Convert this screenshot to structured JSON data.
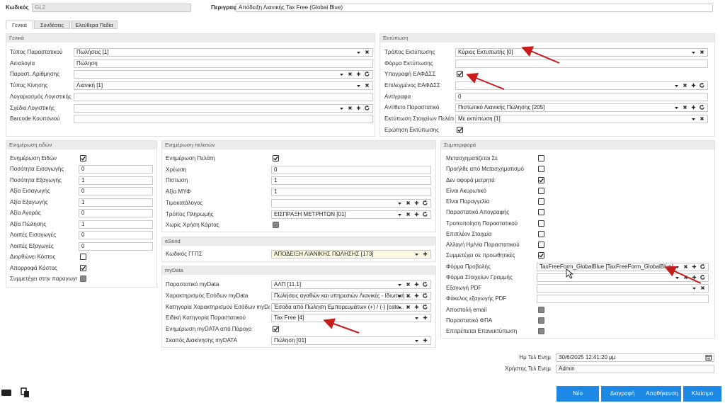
{
  "header": {
    "code_label": "Κωδικός",
    "code_value": "GL2",
    "desc_label": "Περιγραφή",
    "desc_value": "Απόδειξη Λιανικής Tax Free (Global Blue)"
  },
  "tabs": [
    "Γενικά",
    "Συνδέσεις",
    "Ελεύθερα Πεδία"
  ],
  "sections": [
    {
      "title": "Γενικά",
      "fields": [
        {
          "label": "Τύπος Παραστατικού",
          "value": "Πωλήσεις [1]",
          "control": "select-x"
        },
        {
          "label": "Αιτιολογία",
          "value": "Πώληση",
          "control": "text"
        },
        {
          "label": "Παραστ. Αρίθμησης",
          "control": "select-full"
        },
        {
          "label": "Τύπος Κίνησης",
          "value": "Λιανική [1]",
          "control": "select-x"
        },
        {
          "label": "Λογαριασμός Λογιστικής",
          "control": "text"
        },
        {
          "label": "Σχέδιο Λογιστικής",
          "control": "select-full"
        },
        {
          "label": "Barcode Κουπονιού",
          "control": "text"
        }
      ]
    },
    {
      "title": "Εκτύπωση",
      "fields": [
        {
          "label": "Τρόπος Εκτύπωσης",
          "value": "Κύριος Εκτυπωτής [0]",
          "control": "select-x"
        },
        {
          "label": "Φόρμα Εκτύπωσης",
          "control": "text"
        },
        {
          "label": "Υπογραφή ΕΑΦΔΣΣ",
          "control": "check",
          "checked": true
        },
        {
          "label": "Επιλεγμένος ΕΑΦΔΣΣ",
          "control": "select-full"
        },
        {
          "label": "Αντίγραφα",
          "value": "0",
          "control": "text"
        },
        {
          "label": "Αντίθετο Παραστατικό",
          "value": "Πιστωτικό Λιανικής Πώλησης [205]",
          "control": "select-full"
        },
        {
          "label": "Εκτύπωση Στοιχείων Πελάτη",
          "value": "Με εκτύπωση [1]",
          "control": "select-x"
        },
        {
          "label": "Ερώτηση Εκτύπωσης",
          "control": "check",
          "checked": true
        }
      ]
    },
    {
      "title": "Ενημέρωση ειδών",
      "fields": [
        {
          "label": "Ενημέρωση Ειδών",
          "control": "check",
          "checked": true
        },
        {
          "label": "Ποσότητα Εισαγωγής",
          "value": "0",
          "control": "text"
        },
        {
          "label": "Ποσότητα Εξαγωγής",
          "value": "1",
          "control": "text"
        },
        {
          "label": "Αξία Εισαγωγής",
          "value": "0",
          "control": "text"
        },
        {
          "label": "Αξία Εξαγωγής",
          "value": "1",
          "control": "text"
        },
        {
          "label": "Αξία Αγοράς",
          "value": "0",
          "control": "text"
        },
        {
          "label": "Αξία Πώλησης",
          "value": "1",
          "control": "text"
        },
        {
          "label": "Λοιπές Εισαγωγές",
          "value": "0",
          "control": "text"
        },
        {
          "label": "Λοιπές Εξαγωγές",
          "value": "0",
          "control": "text"
        },
        {
          "label": "Διορθώνει Κόστος",
          "control": "check",
          "checked": false
        },
        {
          "label": "Απορροφά Κόστος",
          "control": "check",
          "checked": true
        },
        {
          "label": "Συμμετέχει στην παραγωγή",
          "control": "check-disabled"
        }
      ]
    },
    {
      "title": "Ενημέρωση πελατών",
      "fields": [
        {
          "label": "Ενημέρωση Πελάτη",
          "control": "check",
          "checked": true
        },
        {
          "label": "Χρέωση",
          "value": "0",
          "control": "text"
        },
        {
          "label": "Πίστωση",
          "value": "1",
          "control": "text"
        },
        {
          "label": "Αξία ΜΥΦ",
          "value": "1",
          "control": "text"
        },
        {
          "label": "Τιμοκατάλογος",
          "control": "select-full"
        },
        {
          "label": "Τρόπος Πληρωμής",
          "value": "ΕΙΣΠΡΑΞΗ ΜΕΤΡΗΤΩΝ [01]",
          "control": "select-full"
        },
        {
          "label": "Χωρίς Χρήση Κάρτας",
          "control": "check-disabled"
        }
      ]
    },
    {
      "title": "eSend",
      "fields": [
        {
          "label": "Κωδικός ΓΓΠΣ",
          "value": "ΑΠΟΔΕΙΞΗ ΛΙΑΝΙΚΗΣ ΠΩΛΗΣΗΣ [173]",
          "control": "select-plus",
          "color": "#fdf8e1"
        }
      ]
    },
    {
      "title": "myData",
      "fields": [
        {
          "label": "Παραστατικό myData",
          "value": "ΑΛΠ [11.1]",
          "control": "select-full"
        },
        {
          "label": "Χαρακτηρισμός Εσόδων myData",
          "value": "Πωλήσεις αγαθών και υπηρεσιών Λιανικές - Ιδιωτική ...",
          "control": "select-full"
        },
        {
          "label": "Κατηγορία Χαρακτηρισμού Εσόδων myData",
          "value": "Έσοδα από Πώληση Εμπορευμάτων (+) / (-) [cate...",
          "control": "select-full"
        },
        {
          "label": "Ειδική Κατηγορία Παραστατικού",
          "value": "Tax Free [4]",
          "control": "select-plus"
        },
        {
          "label": "Ενημέρωση myDATA από Πάροχο",
          "control": "check",
          "checked": true
        },
        {
          "label": "Σκοπός Διακίνησης myDATA",
          "value": "Πώληση [01]",
          "control": "select-plus"
        }
      ]
    },
    {
      "title": "Συμπεριφορά",
      "fields": [
        {
          "label": "Μετασχηματίζεται Σε",
          "control": "check",
          "checked": false
        },
        {
          "label": "Προήλθε από Μετασχηματισμό",
          "control": "check",
          "checked": false
        },
        {
          "label": "Δεν αφορά μετρητά",
          "control": "check",
          "checked": true
        },
        {
          "label": "Είναι Ακυρωτικό",
          "control": "check",
          "checked": false
        },
        {
          "label": "Είναι Παραγγελία",
          "control": "check",
          "checked": false
        },
        {
          "label": "Παραστατικό Απογραφής",
          "control": "check",
          "checked": false
        },
        {
          "label": "Τροποποίηση Παραστατικού",
          "control": "check",
          "checked": false
        },
        {
          "label": "Επιπλέον Στοιχεία",
          "control": "check",
          "checked": false
        },
        {
          "label": "Αλλαγή Ημ/νία Παραστατικού",
          "control": "check",
          "checked": false
        },
        {
          "label": "Συμμετέχει σε προωθητικές",
          "control": "check",
          "checked": true
        },
        {
          "label": "Φόρμα Προβολής",
          "value": "TaxFreeForm_GlobalBlue [TaxFreeForm_GlobalBlue]",
          "control": "select-full"
        },
        {
          "label": "Φόρμα Στοιχείων Γραμμής",
          "control": "select-full"
        },
        {
          "label": "Εξαγωγή PDF",
          "control": "select-x"
        },
        {
          "label": "Φάκελος εξαγωγής PDF",
          "control": "text"
        },
        {
          "label": "Αποστολή email",
          "control": "check-disabled"
        },
        {
          "label": "Παραστατικό ΦΠΑ",
          "control": "check-disabled"
        },
        {
          "label": "Επιτρέπεται Επανεκτύπωση",
          "control": "check-disabled"
        }
      ]
    }
  ],
  "footer_fields": [
    {
      "label": "Ημ Τελ Ενημ",
      "value": "30/6/2025 12:41:20 μμ",
      "control": "date"
    },
    {
      "label": "Χρήστης Τελ Ενημ",
      "value": "Admin",
      "control": "text"
    }
  ],
  "buttons": [
    "Νέο",
    "Διαγραφή",
    "Αποθήκευση",
    "Κλείσιμο"
  ]
}
